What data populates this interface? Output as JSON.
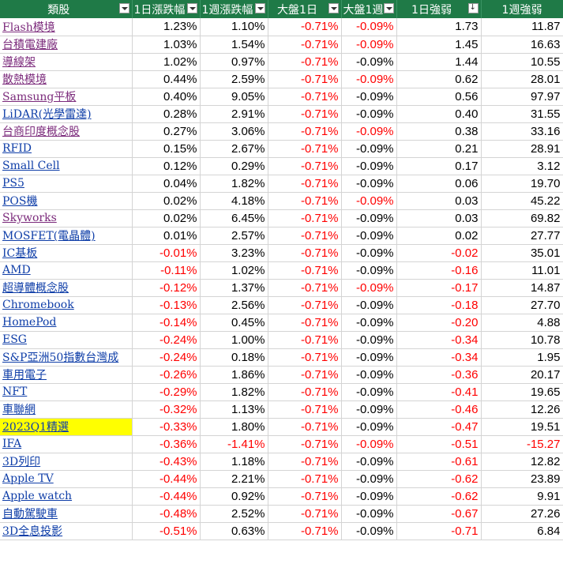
{
  "headers": [
    "類股",
    "1日漲跌幅",
    "1週漲跌幅",
    "大盤1日",
    "大盤1週",
    "1日強弱",
    "1週強弱"
  ],
  "colors": {
    "header_bg": "#1f7a47",
    "negative": "#ff0000",
    "link_blue": "#0f3ea8",
    "link_purple": "#7b2a7b",
    "highlight": "#ffff00"
  },
  "rows": [
    {
      "name": "Flash模境",
      "link": "purple",
      "d1": "1.23%",
      "w1": "1.10%",
      "m1": "-0.71%",
      "mw": "-0.09%",
      "mwRed": true,
      "s1": "1.73",
      "sw": "11.87"
    },
    {
      "name": "台積電建廠",
      "link": "purple",
      "d1": "1.03%",
      "w1": "1.54%",
      "m1": "-0.71%",
      "mw": "-0.09%",
      "mwRed": true,
      "s1": "1.45",
      "sw": "16.63"
    },
    {
      "name": "導線架",
      "link": "purple",
      "d1": "1.02%",
      "w1": "0.97%",
      "m1": "-0.71%",
      "mw": "-0.09%",
      "mwRed": false,
      "s1": "1.44",
      "sw": "10.55"
    },
    {
      "name": "散熱模境",
      "link": "purple",
      "d1": "0.44%",
      "w1": "2.59%",
      "m1": "-0.71%",
      "mw": "-0.09%",
      "mwRed": true,
      "s1": "0.62",
      "sw": "28.01"
    },
    {
      "name": "Samsung平板",
      "link": "purple",
      "d1": "0.40%",
      "w1": "9.05%",
      "m1": "-0.71%",
      "mw": "-0.09%",
      "mwRed": false,
      "s1": "0.56",
      "sw": "97.97"
    },
    {
      "name": "LiDAR(光學雷達)",
      "link": "blue",
      "d1": "0.28%",
      "w1": "2.91%",
      "m1": "-0.71%",
      "mw": "-0.09%",
      "mwRed": false,
      "s1": "0.40",
      "sw": "31.55"
    },
    {
      "name": "台商印度概念股",
      "link": "purple",
      "d1": "0.27%",
      "w1": "3.06%",
      "m1": "-0.71%",
      "mw": "-0.09%",
      "mwRed": true,
      "s1": "0.38",
      "sw": "33.16"
    },
    {
      "name": "RFID",
      "link": "blue",
      "d1": "0.15%",
      "w1": "2.67%",
      "m1": "-0.71%",
      "mw": "-0.09%",
      "mwRed": false,
      "s1": "0.21",
      "sw": "28.91"
    },
    {
      "name": "Small Cell",
      "link": "blue",
      "d1": "0.12%",
      "w1": "0.29%",
      "m1": "-0.71%",
      "mw": "-0.09%",
      "mwRed": false,
      "s1": "0.17",
      "sw": "3.12"
    },
    {
      "name": "PS5",
      "link": "blue",
      "d1": "0.04%",
      "w1": "1.82%",
      "m1": "-0.71%",
      "mw": "-0.09%",
      "mwRed": false,
      "s1": "0.06",
      "sw": "19.70"
    },
    {
      "name": "POS機",
      "link": "blue",
      "d1": "0.02%",
      "w1": "4.18%",
      "m1": "-0.71%",
      "mw": "-0.09%",
      "mwRed": true,
      "s1": "0.03",
      "sw": "45.22"
    },
    {
      "name": "Skyworks",
      "link": "purple",
      "d1": "0.02%",
      "w1": "6.45%",
      "m1": "-0.71%",
      "mw": "-0.09%",
      "mwRed": false,
      "s1": "0.03",
      "sw": "69.82"
    },
    {
      "name": "MOSFET(電晶體)",
      "link": "blue",
      "d1": "0.01%",
      "w1": "2.57%",
      "m1": "-0.71%",
      "mw": "-0.09%",
      "mwRed": false,
      "s1": "0.02",
      "sw": "27.77"
    },
    {
      "name": "IC基板",
      "link": "blue",
      "d1": "-0.01%",
      "w1": "3.23%",
      "m1": "-0.71%",
      "mw": "-0.09%",
      "mwRed": false,
      "s1": "-0.02",
      "sw": "35.01"
    },
    {
      "name": "AMD",
      "link": "blue",
      "d1": "-0.11%",
      "w1": "1.02%",
      "m1": "-0.71%",
      "mw": "-0.09%",
      "mwRed": false,
      "s1": "-0.16",
      "sw": "11.01"
    },
    {
      "name": "超導體概念股",
      "link": "blue",
      "d1": "-0.12%",
      "w1": "1.37%",
      "m1": "-0.71%",
      "mw": "-0.09%",
      "mwRed": true,
      "s1": "-0.17",
      "sw": "14.87"
    },
    {
      "name": "Chromebook",
      "link": "blue",
      "d1": "-0.13%",
      "w1": "2.56%",
      "m1": "-0.71%",
      "mw": "-0.09%",
      "mwRed": false,
      "s1": "-0.18",
      "sw": "27.70"
    },
    {
      "name": "HomePod",
      "link": "blue",
      "d1": "-0.14%",
      "w1": "0.45%",
      "m1": "-0.71%",
      "mw": "-0.09%",
      "mwRed": false,
      "s1": "-0.20",
      "sw": "4.88"
    },
    {
      "name": "ESG",
      "link": "blue",
      "d1": "-0.24%",
      "w1": "1.00%",
      "m1": "-0.71%",
      "mw": "-0.09%",
      "mwRed": false,
      "s1": "-0.34",
      "sw": "10.78"
    },
    {
      "name": "S&P亞洲50指數台灣成",
      "link": "blue",
      "d1": "-0.24%",
      "w1": "0.18%",
      "m1": "-0.71%",
      "mw": "-0.09%",
      "mwRed": false,
      "s1": "-0.34",
      "sw": "1.95"
    },
    {
      "name": "車用電子",
      "link": "blue",
      "d1": "-0.26%",
      "w1": "1.86%",
      "m1": "-0.71%",
      "mw": "-0.09%",
      "mwRed": false,
      "s1": "-0.36",
      "sw": "20.17"
    },
    {
      "name": "NFT",
      "link": "blue",
      "d1": "-0.29%",
      "w1": "1.82%",
      "m1": "-0.71%",
      "mw": "-0.09%",
      "mwRed": false,
      "s1": "-0.41",
      "sw": "19.65"
    },
    {
      "name": "車聯網",
      "link": "blue",
      "d1": "-0.32%",
      "w1": "1.13%",
      "m1": "-0.71%",
      "mw": "-0.09%",
      "mwRed": false,
      "s1": "-0.46",
      "sw": "12.26"
    },
    {
      "name": "2023Q1精選",
      "link": "blue",
      "highlight": true,
      "d1": "-0.33%",
      "w1": "1.80%",
      "m1": "-0.71%",
      "mw": "-0.09%",
      "mwRed": false,
      "s1": "-0.47",
      "sw": "19.51"
    },
    {
      "name": "IFA",
      "link": "blue",
      "d1": "-0.36%",
      "w1": "-1.41%",
      "m1": "-0.71%",
      "mw": "-0.09%",
      "mwRed": true,
      "s1": "-0.51",
      "sw": "-15.27"
    },
    {
      "name": "3D列印",
      "link": "blue",
      "d1": "-0.43%",
      "w1": "1.18%",
      "m1": "-0.71%",
      "mw": "-0.09%",
      "mwRed": false,
      "s1": "-0.61",
      "sw": "12.82"
    },
    {
      "name": "Apple TV",
      "link": "blue",
      "d1": "-0.44%",
      "w1": "2.21%",
      "m1": "-0.71%",
      "mw": "-0.09%",
      "mwRed": false,
      "s1": "-0.62",
      "sw": "23.89"
    },
    {
      "name": "Apple watch",
      "link": "blue",
      "d1": "-0.44%",
      "w1": "0.92%",
      "m1": "-0.71%",
      "mw": "-0.09%",
      "mwRed": false,
      "s1": "-0.62",
      "sw": "9.91"
    },
    {
      "name": "自動駕駛車",
      "link": "blue",
      "d1": "-0.48%",
      "w1": "2.52%",
      "m1": "-0.71%",
      "mw": "-0.09%",
      "mwRed": false,
      "s1": "-0.67",
      "sw": "27.26"
    },
    {
      "name": "3D全息投影",
      "link": "blue",
      "d1": "-0.51%",
      "w1": "0.63%",
      "m1": "-0.71%",
      "mw": "-0.09%",
      "mwRed": false,
      "s1": "-0.71",
      "sw": "6.84"
    }
  ]
}
